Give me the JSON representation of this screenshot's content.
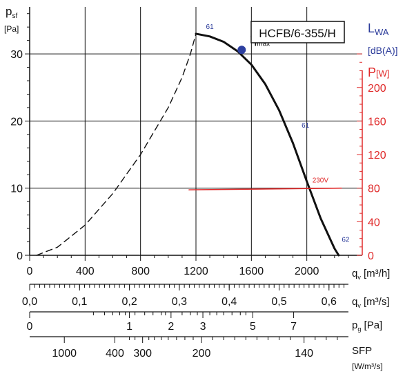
{
  "chart_data": {
    "type": "line",
    "title": "HCFB/6-355/H",
    "y_axis": {
      "label_main": "p",
      "label_sub": "sf",
      "unit": "[Pa]",
      "ylim": [
        0,
        37
      ],
      "ticks": [
        0,
        10,
        20,
        30
      ],
      "tick_labels": [
        "0",
        "10",
        "20",
        "30"
      ]
    },
    "x_axis": {
      "label_main": "q",
      "label_sub": "v",
      "unit": "[m³/h]",
      "xlim": [
        0,
        2400
      ],
      "ticks": [
        0,
        400,
        800,
        1200,
        1600,
        2000
      ],
      "tick_labels": [
        "0",
        "400",
        "800",
        "1200",
        "1600",
        "2000"
      ]
    },
    "right_axis": {
      "lwa_main": "L",
      "lwa_sub": "WA",
      "lwa_unit": "[dB(A)]",
      "power_main": "P",
      "power_unit": "[W]",
      "plim": [
        0,
        296
      ],
      "ticks": [
        0,
        40,
        80,
        120,
        160,
        200
      ],
      "tick_labels": [
        "0",
        "40",
        "80",
        "120",
        "160",
        "200"
      ]
    },
    "extra_scales": [
      {
        "label_main": "q",
        "label_sub": "v",
        "unit": "[m³/s]",
        "major": [
          {
            "q": 0,
            "label": "0,0"
          },
          {
            "q": 360,
            "label": "0,1"
          },
          {
            "q": 720,
            "label": "0,2"
          },
          {
            "q": 1080,
            "label": "0,3"
          },
          {
            "q": 1440,
            "label": "0,4"
          },
          {
            "q": 1800,
            "label": "0,5"
          },
          {
            "q": 2160,
            "label": "0,6"
          }
        ]
      },
      {
        "label_main": "p",
        "label_sub": "g",
        "unit": "[Pa]",
        "major": [
          {
            "q": 0,
            "label": "0"
          },
          {
            "q": 720,
            "label": "1"
          },
          {
            "q": 1020,
            "label": "2"
          },
          {
            "q": 1250,
            "label": "3"
          },
          {
            "q": 1610,
            "label": "5"
          },
          {
            "q": 1905,
            "label": "7"
          }
        ]
      },
      {
        "label_main": "SFP",
        "unit": "[W/m³/s]",
        "major": [
          {
            "q": 250,
            "label": "1000"
          },
          {
            "q": 615,
            "label": "400"
          },
          {
            "q": 815,
            "label": "300"
          },
          {
            "q": 1240,
            "label": "200"
          },
          {
            "q": 1980,
            "label": "140"
          }
        ]
      }
    ],
    "series": [
      {
        "style": "dashed",
        "color": "#111111",
        "x": [
          50,
          200,
          400,
          600,
          800,
          1000,
          1100,
          1160,
          1200
        ],
        "y": [
          0,
          1.2,
          4.5,
          9.2,
          15.0,
          22.0,
          26.5,
          30.0,
          33.0
        ]
      },
      {
        "style": "solid",
        "color": "#111111",
        "x": [
          1200,
          1300,
          1400,
          1500,
          1600,
          1700,
          1800,
          1900,
          2000,
          2100,
          2200,
          2230
        ],
        "y": [
          33.0,
          32.6,
          31.8,
          30.4,
          28.4,
          25.5,
          21.6,
          16.7,
          11.0,
          5.5,
          1.0,
          0
        ]
      },
      {
        "name": "230V",
        "axis": "power",
        "style": "solid",
        "color": "#e02a2a",
        "x": [
          1150,
          2250
        ],
        "y": [
          78,
          80
        ]
      }
    ],
    "eta_max": {
      "label_main": "η",
      "label_sub": "max",
      "x": 1530,
      "y": 30.6,
      "color": "#2d3fa0"
    },
    "lwa_annotations": [
      {
        "label": "61",
        "x": 1300,
        "y": 33.7
      },
      {
        "label": "61",
        "x": 1990,
        "y": 19.0
      },
      {
        "label": "62",
        "x": 2280,
        "y": 2.0
      }
    ],
    "grid": true,
    "accent_power": "#e02a2a",
    "accent_sound": "#2b3b9a"
  }
}
